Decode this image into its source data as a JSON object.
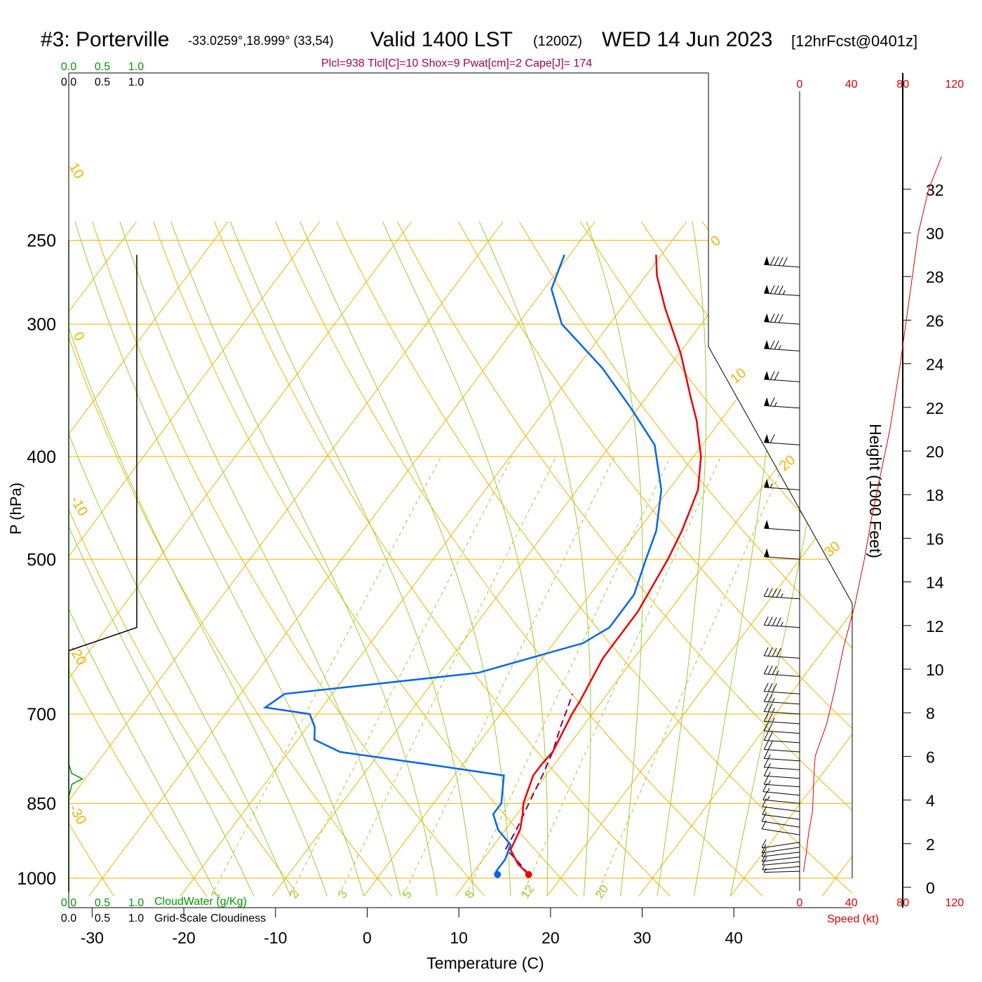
{
  "header": {
    "station": "#3: Porterville",
    "coords": "-33.0259°,18.999° (33,54)",
    "valid": "Valid 1400 LST",
    "utc": "(1200Z)",
    "date": "WED 14 Jun 2023",
    "forecast": "[12hrFcst@0401z]",
    "indices": "Plcl=938 Tlcl[C]=10 Shox=9 Pwat[cm]=2 Cape[J]= 174"
  },
  "colors": {
    "temperature": "#ee0000",
    "dewpoint": "#0066ee",
    "parcel": "#800060",
    "isobar": "#f0b400",
    "isotherm": "#f0b400",
    "dry_adiabat": "#f0b400",
    "moist_adiabat": "#99cc33",
    "mixing_ratio": "#99cc33",
    "cloudwater": "#009900",
    "cloudiness": "#000000",
    "wind_speed": "#dd0000",
    "indices": "#a0005a"
  },
  "chart_data": {
    "type": "line",
    "subtype": "skew-t log-p sounding",
    "xlabel": "Temperature (C)",
    "ylabel": "P (hPa)",
    "xlim": [
      -36,
      36
    ],
    "ylim": [
      1030,
      250
    ],
    "y_scale": "log",
    "x_ticks": [
      -30,
      -20,
      -10,
      0,
      10,
      20,
      30,
      40
    ],
    "pressure_ticks": [
      250,
      300,
      400,
      500,
      700,
      850,
      1000
    ],
    "isotherm_labels": [
      {
        "t": 10,
        "label": "10"
      },
      {
        "t": 0,
        "label": "0"
      },
      {
        "t": -10,
        "label": "-10"
      },
      {
        "t": -20,
        "label": "-20"
      },
      {
        "t": -30,
        "label": "-30"
      },
      {
        "t": 0,
        "label": "0"
      },
      {
        "t": 10,
        "label": "10"
      },
      {
        "t": 20,
        "label": "20"
      },
      {
        "t": 30,
        "label": "30"
      }
    ],
    "mixing_ratio_labels": [
      "1",
      "2",
      "3",
      "5",
      "8",
      "12",
      "20"
    ],
    "temperature": [
      {
        "p": 992,
        "t": 16.2
      },
      {
        "p": 970,
        "t": 14.2
      },
      {
        "p": 940,
        "t": 12.2
      },
      {
        "p": 900,
        "t": 11.6
      },
      {
        "p": 870,
        "t": 10.6
      },
      {
        "p": 850,
        "t": 9.8
      },
      {
        "p": 800,
        "t": 8.6
      },
      {
        "p": 780,
        "t": 8.6
      },
      {
        "p": 760,
        "t": 8.8
      },
      {
        "p": 700,
        "t": 7.8
      },
      {
        "p": 680,
        "t": 7.6
      },
      {
        "p": 620,
        "t": 6.6
      },
      {
        "p": 600,
        "t": 6.6
      },
      {
        "p": 560,
        "t": 6.6
      },
      {
        "p": 500,
        "t": 5.6
      },
      {
        "p": 470,
        "t": 4.8
      },
      {
        "p": 430,
        "t": 3.2
      },
      {
        "p": 400,
        "t": 0.8
      },
      {
        "p": 370,
        "t": -2.6
      },
      {
        "p": 350,
        "t": -5.4
      },
      {
        "p": 320,
        "t": -9.8
      },
      {
        "p": 290,
        "t": -15.2
      },
      {
        "p": 270,
        "t": -18.8
      },
      {
        "p": 258,
        "t": -20.6
      }
    ],
    "dewpoint": [
      {
        "p": 992,
        "t": 12.8
      },
      {
        "p": 985,
        "t": 12.4
      },
      {
        "p": 960,
        "t": 12.4
      },
      {
        "p": 930,
        "t": 11.8
      },
      {
        "p": 900,
        "t": 9.2
      },
      {
        "p": 870,
        "t": 7.4
      },
      {
        "p": 850,
        "t": 7.4
      },
      {
        "p": 800,
        "t": 5.4
      },
      {
        "p": 780,
        "t": -4.2
      },
      {
        "p": 760,
        "t": -14.4
      },
      {
        "p": 740,
        "t": -18.2
      },
      {
        "p": 720,
        "t": -19.2
      },
      {
        "p": 700,
        "t": -20.8
      },
      {
        "p": 690,
        "t": -26.2
      },
      {
        "p": 670,
        "t": -25.2
      },
      {
        "p": 640,
        "t": -5.8
      },
      {
        "p": 600,
        "t": 3.2
      },
      {
        "p": 580,
        "t": 4.8
      },
      {
        "p": 540,
        "t": 4.8
      },
      {
        "p": 500,
        "t": 3.2
      },
      {
        "p": 470,
        "t": 2.0
      },
      {
        "p": 430,
        "t": -0.8
      },
      {
        "p": 390,
        "t": -5.2
      },
      {
        "p": 360,
        "t": -10.8
      },
      {
        "p": 330,
        "t": -17.2
      },
      {
        "p": 300,
        "t": -25.2
      },
      {
        "p": 278,
        "t": -29.2
      },
      {
        "p": 258,
        "t": -30.6
      }
    ],
    "parcel": [
      {
        "p": 992,
        "t": 16.2
      },
      {
        "p": 960,
        "t": 13.6
      },
      {
        "p": 938,
        "t": 11.6
      },
      {
        "p": 900,
        "t": 11.2
      },
      {
        "p": 850,
        "t": 10.4
      },
      {
        "p": 800,
        "t": 9.6
      },
      {
        "p": 760,
        "t": 8.8
      },
      {
        "p": 720,
        "t": 7.6
      },
      {
        "p": 690,
        "t": 6.8
      },
      {
        "p": 670,
        "t": 6.2
      }
    ],
    "cloudiness": [
      {
        "p": 258,
        "v": 1.0
      },
      {
        "p": 580,
        "v": 1.0
      },
      {
        "p": 610,
        "v": 0.0
      },
      {
        "p": 1030,
        "v": 0.0
      }
    ],
    "cloudwater": [
      {
        "p": 1030,
        "v": 0.0
      },
      {
        "p": 838,
        "v": 0.0
      },
      {
        "p": 815,
        "v": 0.05
      },
      {
        "p": 806,
        "v": 0.2
      },
      {
        "p": 796,
        "v": 0.04
      },
      {
        "p": 780,
        "v": 0.0
      },
      {
        "p": 250,
        "v": 0.0
      }
    ],
    "top_scale_labels": {
      "cloudwater": [
        "0.0",
        "0.5",
        "1.0"
      ],
      "cloudiness": [
        "0.0",
        "0.5",
        "1.0"
      ]
    },
    "bottom_scale_labels": {
      "cloudwater": [
        "0.0",
        "0.5",
        "1.0"
      ],
      "cloudwater_title": "CloudWater (g/Kg)",
      "cloudiness": [
        "0.0",
        "0.5",
        "1.0"
      ],
      "cloudiness_title": "Grid-Scale Cloudiness"
    },
    "wind_speed_axis": {
      "ticks": [
        0,
        40,
        80,
        120
      ],
      "labels": [
        "0",
        "40",
        "80",
        "120"
      ],
      "title": "Speed (kt)"
    },
    "height_axis": {
      "title": "Height (1000 Feet)",
      "ticks": [
        0,
        2,
        4,
        6,
        8,
        10,
        12,
        14,
        16,
        18,
        20,
        22,
        24,
        26,
        28,
        30,
        32
      ]
    },
    "wind_speed_profile": [
      {
        "h": 0.7,
        "s": 3
      },
      {
        "h": 1.5,
        "s": 5
      },
      {
        "h": 2.5,
        "s": 7
      },
      {
        "h": 3.5,
        "s": 10
      },
      {
        "h": 5,
        "s": 11
      },
      {
        "h": 6,
        "s": 12
      },
      {
        "h": 6.5,
        "s": 15
      },
      {
        "h": 7.5,
        "s": 21
      },
      {
        "h": 9,
        "s": 27
      },
      {
        "h": 11,
        "s": 34
      },
      {
        "h": 13,
        "s": 43
      },
      {
        "h": 15,
        "s": 50
      },
      {
        "h": 17,
        "s": 56
      },
      {
        "h": 19,
        "s": 63
      },
      {
        "h": 21,
        "s": 70
      },
      {
        "h": 24,
        "s": 78
      },
      {
        "h": 27,
        "s": 85
      },
      {
        "h": 30,
        "s": 92
      },
      {
        "h": 32,
        "s": 100
      },
      {
        "h": 33.5,
        "s": 110
      }
    ],
    "wind_barbs": [
      {
        "p": 985,
        "speed": 5,
        "dir": 250
      },
      {
        "p": 975,
        "speed": 5,
        "dir": 260
      },
      {
        "p": 965,
        "speed": 10,
        "dir": 260
      },
      {
        "p": 955,
        "speed": 10,
        "dir": 265
      },
      {
        "p": 945,
        "speed": 10,
        "dir": 265
      },
      {
        "p": 935,
        "speed": 10,
        "dir": 270
      },
      {
        "p": 925,
        "speed": 10,
        "dir": 270
      },
      {
        "p": 910,
        "speed": 10,
        "dir": 275
      },
      {
        "p": 895,
        "speed": 10,
        "dir": 275
      },
      {
        "p": 880,
        "speed": 10,
        "dir": 280
      },
      {
        "p": 865,
        "speed": 10,
        "dir": 280
      },
      {
        "p": 850,
        "speed": 15,
        "dir": 285
      },
      {
        "p": 835,
        "speed": 15,
        "dir": 285
      },
      {
        "p": 820,
        "speed": 15,
        "dir": 290
      },
      {
        "p": 805,
        "speed": 15,
        "dir": 290
      },
      {
        "p": 790,
        "speed": 15,
        "dir": 290
      },
      {
        "p": 775,
        "speed": 15,
        "dir": 290
      },
      {
        "p": 760,
        "speed": 20,
        "dir": 290
      },
      {
        "p": 745,
        "speed": 20,
        "dir": 290
      },
      {
        "p": 730,
        "speed": 20,
        "dir": 290
      },
      {
        "p": 715,
        "speed": 25,
        "dir": 290
      },
      {
        "p": 700,
        "speed": 25,
        "dir": 290
      },
      {
        "p": 685,
        "speed": 25,
        "dir": 290
      },
      {
        "p": 670,
        "speed": 30,
        "dir": 290
      },
      {
        "p": 645,
        "speed": 35,
        "dir": 290
      },
      {
        "p": 620,
        "speed": 40,
        "dir": 290
      },
      {
        "p": 580,
        "speed": 45,
        "dir": 290
      },
      {
        "p": 545,
        "speed": 45,
        "dir": 290
      },
      {
        "p": 500,
        "speed": 50,
        "dir": 290
      },
      {
        "p": 470,
        "speed": 50,
        "dir": 290
      },
      {
        "p": 430,
        "speed": 55,
        "dir": 290
      },
      {
        "p": 390,
        "speed": 60,
        "dir": 290
      },
      {
        "p": 360,
        "speed": 65,
        "dir": 290
      },
      {
        "p": 340,
        "speed": 70,
        "dir": 290
      },
      {
        "p": 318,
        "speed": 75,
        "dir": 290
      },
      {
        "p": 300,
        "speed": 80,
        "dir": 290
      },
      {
        "p": 282,
        "speed": 85,
        "dir": 290
      },
      {
        "p": 265,
        "speed": 90,
        "dir": 290
      }
    ]
  }
}
